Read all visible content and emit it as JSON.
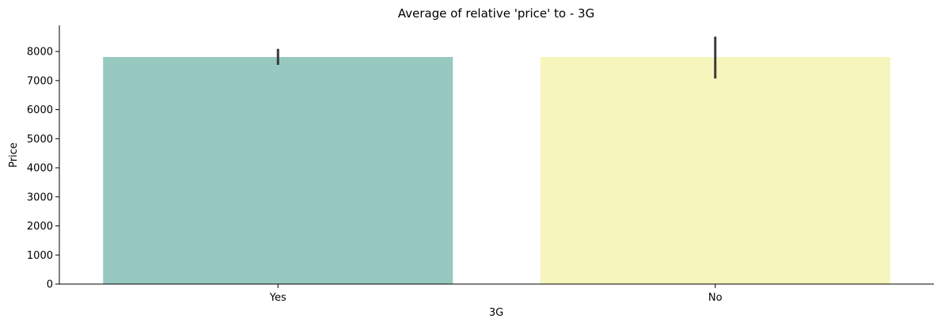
{
  "chart_data": {
    "type": "bar",
    "title": "Average of relative 'price' to - 3G",
    "xlabel": "3G",
    "ylabel": "Price",
    "categories": [
      "Yes",
      "No"
    ],
    "values": [
      7810,
      7810
    ],
    "error_bars": [
      {
        "low": 7540,
        "high": 8090
      },
      {
        "low": 7070,
        "high": 8510
      }
    ],
    "colors": [
      "#98c9c1",
      "#f5f5bc"
    ],
    "error_color": "#3a3a3a",
    "ylim": [
      0,
      8900
    ],
    "yticks": [
      0,
      1000,
      2000,
      3000,
      4000,
      5000,
      6000,
      7000,
      8000
    ],
    "grid": false,
    "legend": "none"
  }
}
